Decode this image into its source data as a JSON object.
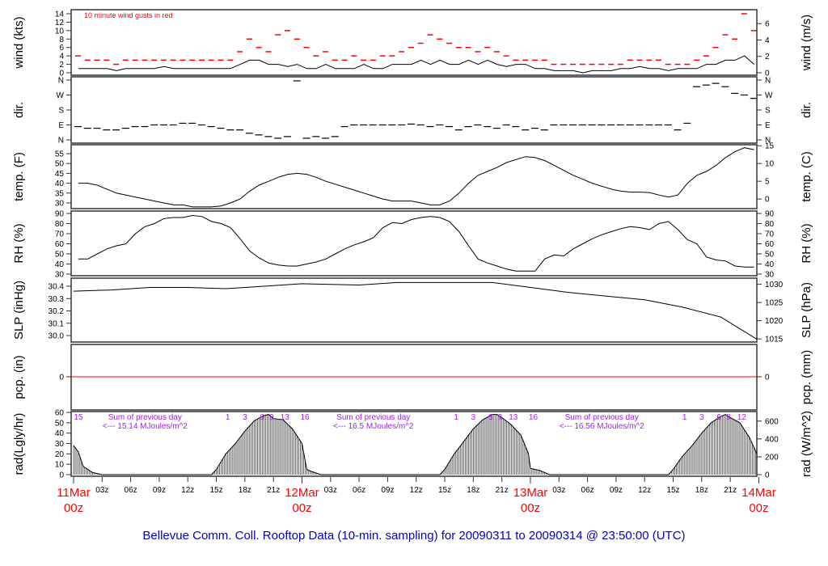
{
  "title": "Bellevue Comm. Coll. Rooftop Data (10-min. sampling) for 20090311  to  20090314 @ 23:50:00  (UTC)",
  "colors": {
    "gust": "#ff0000",
    "line": "#000000",
    "title": "#0000cc",
    "date": "#ff0000",
    "annot": "#a020f0",
    "pcp": "#ff0000"
  },
  "chart_data": {
    "type": "line",
    "x_unit": "hours since 20090311 00z",
    "x_axis": {
      "days": [
        {
          "h": 0,
          "date": "11Mar",
          "time": "00z"
        },
        {
          "h": 24,
          "date": "12Mar",
          "time": "00z"
        },
        {
          "h": 48,
          "date": "13Mar",
          "time": "00z"
        },
        {
          "h": 72,
          "date": "14Mar",
          "time": "00z"
        }
      ],
      "hour_labels": [
        "03z",
        "06z",
        "09z",
        "12z",
        "15z",
        "18z",
        "21z"
      ]
    },
    "wind": {
      "left_label": "wind (kts)",
      "right_label": "wind (m/s)",
      "note": "10  minute wind gusts in red",
      "left_ticks": [
        0,
        2,
        4,
        6,
        8,
        10,
        12,
        14
      ],
      "right_ticks": [
        0,
        2,
        4,
        6
      ],
      "speed_kts": [
        1,
        1,
        1,
        1,
        0.5,
        1,
        1,
        1,
        1,
        1.5,
        1,
        1,
        1,
        1,
        1,
        1,
        1,
        2,
        3,
        3,
        2,
        2,
        1.5,
        2,
        1,
        1,
        2,
        1,
        1,
        1,
        2,
        1,
        1,
        2,
        2,
        2,
        3,
        2,
        3,
        2,
        2,
        3,
        2,
        3,
        2,
        1.5,
        2,
        2,
        1,
        1,
        0.5,
        0.5,
        0.5,
        0,
        0.5,
        0.5,
        0.5,
        1,
        1,
        1.5,
        1,
        1,
        0.5,
        1,
        1,
        1,
        2,
        2,
        3,
        3,
        4,
        2
      ],
      "gust_kts": [
        4,
        3,
        3,
        3,
        2,
        3,
        3,
        3,
        3,
        3,
        3,
        3,
        3,
        3,
        3,
        3,
        3,
        5,
        8,
        6,
        5,
        9,
        10,
        8,
        6,
        4,
        5,
        3,
        3,
        4,
        3,
        3,
        4,
        4,
        5,
        6,
        7,
        9,
        8,
        7,
        6,
        6,
        5,
        6,
        5,
        4,
        3,
        3,
        3,
        3,
        2,
        2,
        2,
        2,
        2,
        2,
        2,
        2,
        3,
        3,
        3,
        3,
        2,
        2,
        2,
        3,
        4,
        6,
        9,
        8,
        14,
        10
      ]
    },
    "direction": {
      "left_label": "dir.",
      "right_label": "dir.",
      "ticks": [
        {
          "v": 0,
          "l": "N"
        },
        {
          "v": 90,
          "l": "E"
        },
        {
          "v": 180,
          "l": "S"
        },
        {
          "v": 270,
          "l": "W"
        },
        {
          "v": 360,
          "l": "N"
        }
      ],
      "deg": [
        80,
        70,
        70,
        60,
        60,
        70,
        80,
        80,
        90,
        90,
        90,
        100,
        100,
        90,
        80,
        70,
        60,
        60,
        40,
        30,
        20,
        10,
        20,
        355,
        10,
        20,
        10,
        20,
        80,
        90,
        90,
        90,
        90,
        90,
        90,
        95,
        90,
        80,
        90,
        80,
        60,
        80,
        90,
        80,
        70,
        90,
        80,
        60,
        70,
        60,
        90,
        90,
        90,
        90,
        90,
        90,
        90,
        90,
        90,
        90,
        90,
        90,
        90,
        60,
        100,
        320,
        330,
        340,
        320,
        280,
        270,
        250
      ]
    },
    "temperature": {
      "left_label": "temp. (F)",
      "right_label": "temp. (C)",
      "left_ticks": [
        30,
        35,
        40,
        45,
        50,
        55
      ],
      "right_ticks": [
        0,
        5,
        10,
        15
      ],
      "F": [
        40,
        40,
        39,
        37,
        35,
        34,
        33,
        32,
        31,
        30,
        29,
        29,
        28,
        28,
        28,
        28.5,
        30,
        32,
        36,
        39,
        41,
        43,
        44.5,
        45,
        44.5,
        43,
        41,
        39.5,
        38,
        36.5,
        35,
        33.5,
        32,
        31,
        31,
        31,
        30,
        29,
        29,
        31,
        35,
        40,
        44,
        46,
        48,
        50.5,
        52,
        53.5,
        53,
        51.5,
        49,
        46.5,
        44,
        42,
        40,
        38.5,
        37,
        36,
        35.5,
        35.5,
        35.3,
        34,
        33,
        34,
        40,
        44,
        46,
        49,
        53,
        56,
        58,
        57
      ]
    },
    "rh": {
      "left_label": "RH (%)",
      "right_label": "RH (%)",
      "ticks": [
        30,
        40,
        50,
        60,
        70,
        80,
        90
      ],
      "values": [
        45,
        45,
        50,
        55,
        58,
        60,
        70,
        77,
        80,
        85,
        86,
        86,
        88,
        87,
        82,
        80,
        76,
        65,
        53,
        46,
        41,
        39,
        38,
        38,
        40,
        42,
        45,
        50,
        55,
        59,
        62,
        66,
        76,
        81,
        80,
        84,
        86,
        87,
        86,
        82,
        72,
        58,
        45,
        41,
        38,
        35,
        33,
        33,
        33,
        45,
        49,
        48,
        55,
        60,
        65,
        69,
        72,
        75,
        77,
        76,
        74,
        80,
        82,
        74,
        64,
        60,
        47,
        44,
        43,
        38,
        37,
        37
      ]
    },
    "slp": {
      "left_label": "SLP (inHg)",
      "right_label": "SLP (hPa)",
      "left_ticks": [
        "30.0",
        "30.1",
        "30.2",
        "30.3",
        "30.4"
      ],
      "right_ticks": [
        1015,
        1020,
        1025,
        1030
      ],
      "hours": [
        0,
        4,
        8,
        12,
        16,
        20,
        24,
        30,
        34,
        40,
        44,
        48,
        52,
        56,
        60,
        64,
        68,
        71.8
      ],
      "inHg": [
        30.36,
        30.37,
        30.39,
        30.39,
        30.38,
        30.4,
        30.42,
        30.41,
        30.43,
        30.43,
        30.43,
        30.39,
        30.35,
        30.32,
        30.29,
        30.23,
        30.15,
        29.97
      ]
    },
    "precip": {
      "left_label": "pcp. (in)",
      "right_label": "pcp. (mm)",
      "left_ticks": [
        0
      ],
      "right_ticks": [
        0
      ],
      "value": 0
    },
    "radiation": {
      "left_label": "rad(Lgly/hr)",
      "right_label": "rad (W/m^2)",
      "left_ticks": [
        0,
        10,
        20,
        30,
        40,
        50,
        60
      ],
      "right_ticks": [
        0,
        200,
        400,
        600
      ],
      "hours": [
        0,
        0.5,
        1,
        1.5,
        2,
        3,
        14.5,
        15,
        16,
        17,
        18,
        19,
        20,
        20.5,
        21,
        22,
        23,
        24,
        24.5,
        25,
        26,
        38.5,
        39,
        40,
        41,
        42,
        43,
        44,
        44.5,
        45,
        46,
        47,
        47.8,
        48,
        49,
        50,
        62.5,
        63,
        64,
        65,
        66,
        67,
        68,
        68.5,
        69,
        70,
        71,
        71.8
      ],
      "lgly": [
        28,
        22,
        8,
        5,
        2,
        0,
        0,
        5,
        20,
        30,
        42,
        52,
        57,
        58,
        54,
        53,
        44,
        30,
        5,
        3,
        0,
        0,
        5,
        20,
        32,
        44,
        53,
        58,
        58,
        55,
        48,
        38,
        20,
        6,
        4,
        0,
        0,
        5,
        18,
        28,
        40,
        50,
        56,
        58,
        55,
        50,
        36,
        20
      ],
      "daily_sums": [
        {
          "h": 3,
          "line1": "Sum of previous day",
          "line2": "<--- 15.14 MJoules/m^2"
        },
        {
          "h": 27,
          "line1": "Sum of previous day",
          "line2": "<--- 16.5 MJoules/m^2"
        },
        {
          "h": 51,
          "line1": "Sum of previous day",
          "line2": "<--- 16.56 MJoules/m^2"
        }
      ],
      "local_hours": [
        {
          "h": 0.5,
          "l": "15"
        },
        {
          "h": 16.2,
          "l": "1"
        },
        {
          "h": 18,
          "l": "3"
        },
        {
          "h": 19.8,
          "l": "6"
        },
        {
          "h": 20.8,
          "l": "9"
        },
        {
          "h": 22.2,
          "l": "13"
        },
        {
          "h": 24.3,
          "l": "16"
        },
        {
          "h": 40.2,
          "l": "1"
        },
        {
          "h": 42,
          "l": "3"
        },
        {
          "h": 43.8,
          "l": "6"
        },
        {
          "h": 44.8,
          "l": "9"
        },
        {
          "h": 46.2,
          "l": "13"
        },
        {
          "h": 48.3,
          "l": "16"
        },
        {
          "h": 64.2,
          "l": "1"
        },
        {
          "h": 66,
          "l": "3"
        },
        {
          "h": 67.8,
          "l": "6"
        },
        {
          "h": 68.8,
          "l": "9"
        },
        {
          "h": 70.2,
          "l": "12"
        }
      ]
    }
  }
}
